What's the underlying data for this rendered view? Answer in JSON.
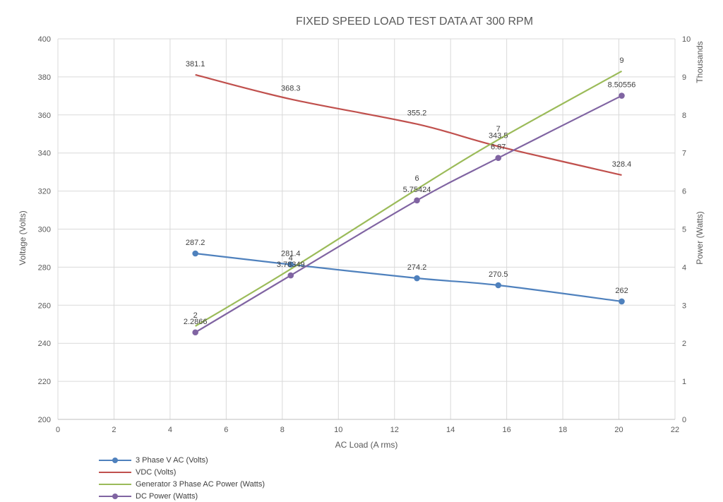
{
  "chart_data": {
    "type": "line",
    "title": "FIXED SPEED LOAD TEST DATA AT 300 RPM",
    "xlabel": "AC Load (A rms)",
    "ylabel_left": "Voltage (Volts)",
    "ylabel_right": "Power (Watts)",
    "right_axis_unit": "Thousands",
    "xlim": [
      0,
      22
    ],
    "x_ticks": [
      "0",
      "2",
      "4",
      "6",
      "8",
      "10",
      "12",
      "14",
      "16",
      "18",
      "20",
      "22"
    ],
    "ylim_left": [
      200,
      400
    ],
    "y_ticks_left": [
      "200",
      "220",
      "240",
      "260",
      "280",
      "300",
      "320",
      "340",
      "360",
      "380",
      "400"
    ],
    "ylim_right": [
      0,
      10
    ],
    "y_ticks_right": [
      "0",
      "1",
      "2",
      "3",
      "4",
      "5",
      "6",
      "7",
      "8",
      "9",
      "10"
    ],
    "grid": true,
    "legend_position": "bottom-left",
    "series": [
      {
        "name": "3 Phase V AC  (Volts)",
        "axis": "left",
        "color": "#4f81bd",
        "markers": true,
        "x": [
          4.9,
          8.3,
          12.8,
          15.7,
          20.1
        ],
        "y": [
          287.2,
          281.4,
          274.2,
          270.5,
          262
        ],
        "labels": [
          "287.2",
          "281.4",
          "274.2",
          "270.5",
          "262"
        ]
      },
      {
        "name": "VDC (Volts)",
        "axis": "left",
        "color": "#c0504d",
        "markers": false,
        "x": [
          4.9,
          8.3,
          12.8,
          15.7,
          20.1
        ],
        "y": [
          381.1,
          368.3,
          355.2,
          343.5,
          328.4
        ],
        "labels": [
          "381.1",
          "368.3",
          "355.2",
          "343.5",
          "328.4"
        ]
      },
      {
        "name": "Generator 3 Phase AC Power (Watts)",
        "axis": "right",
        "color": "#9bbb59",
        "markers": false,
        "x": [
          4.9,
          8.3,
          12.8,
          15.7,
          20.1
        ],
        "y": [
          2.45,
          3.95,
          6.05,
          7.35,
          9.15
        ],
        "labels": [
          "2",
          "4",
          "6",
          "7",
          "9"
        ]
      },
      {
        "name": "DC Power (Watts)",
        "axis": "right",
        "color": "#8064a2",
        "markers": true,
        "x": [
          4.9,
          8.3,
          12.8,
          15.7,
          20.1
        ],
        "y": [
          2.2866,
          3.78349,
          5.75424,
          6.87,
          8.50556
        ],
        "labels": [
          "2.2866",
          "3.78349",
          "5.75424",
          "6.87",
          "8.50556"
        ]
      }
    ]
  }
}
